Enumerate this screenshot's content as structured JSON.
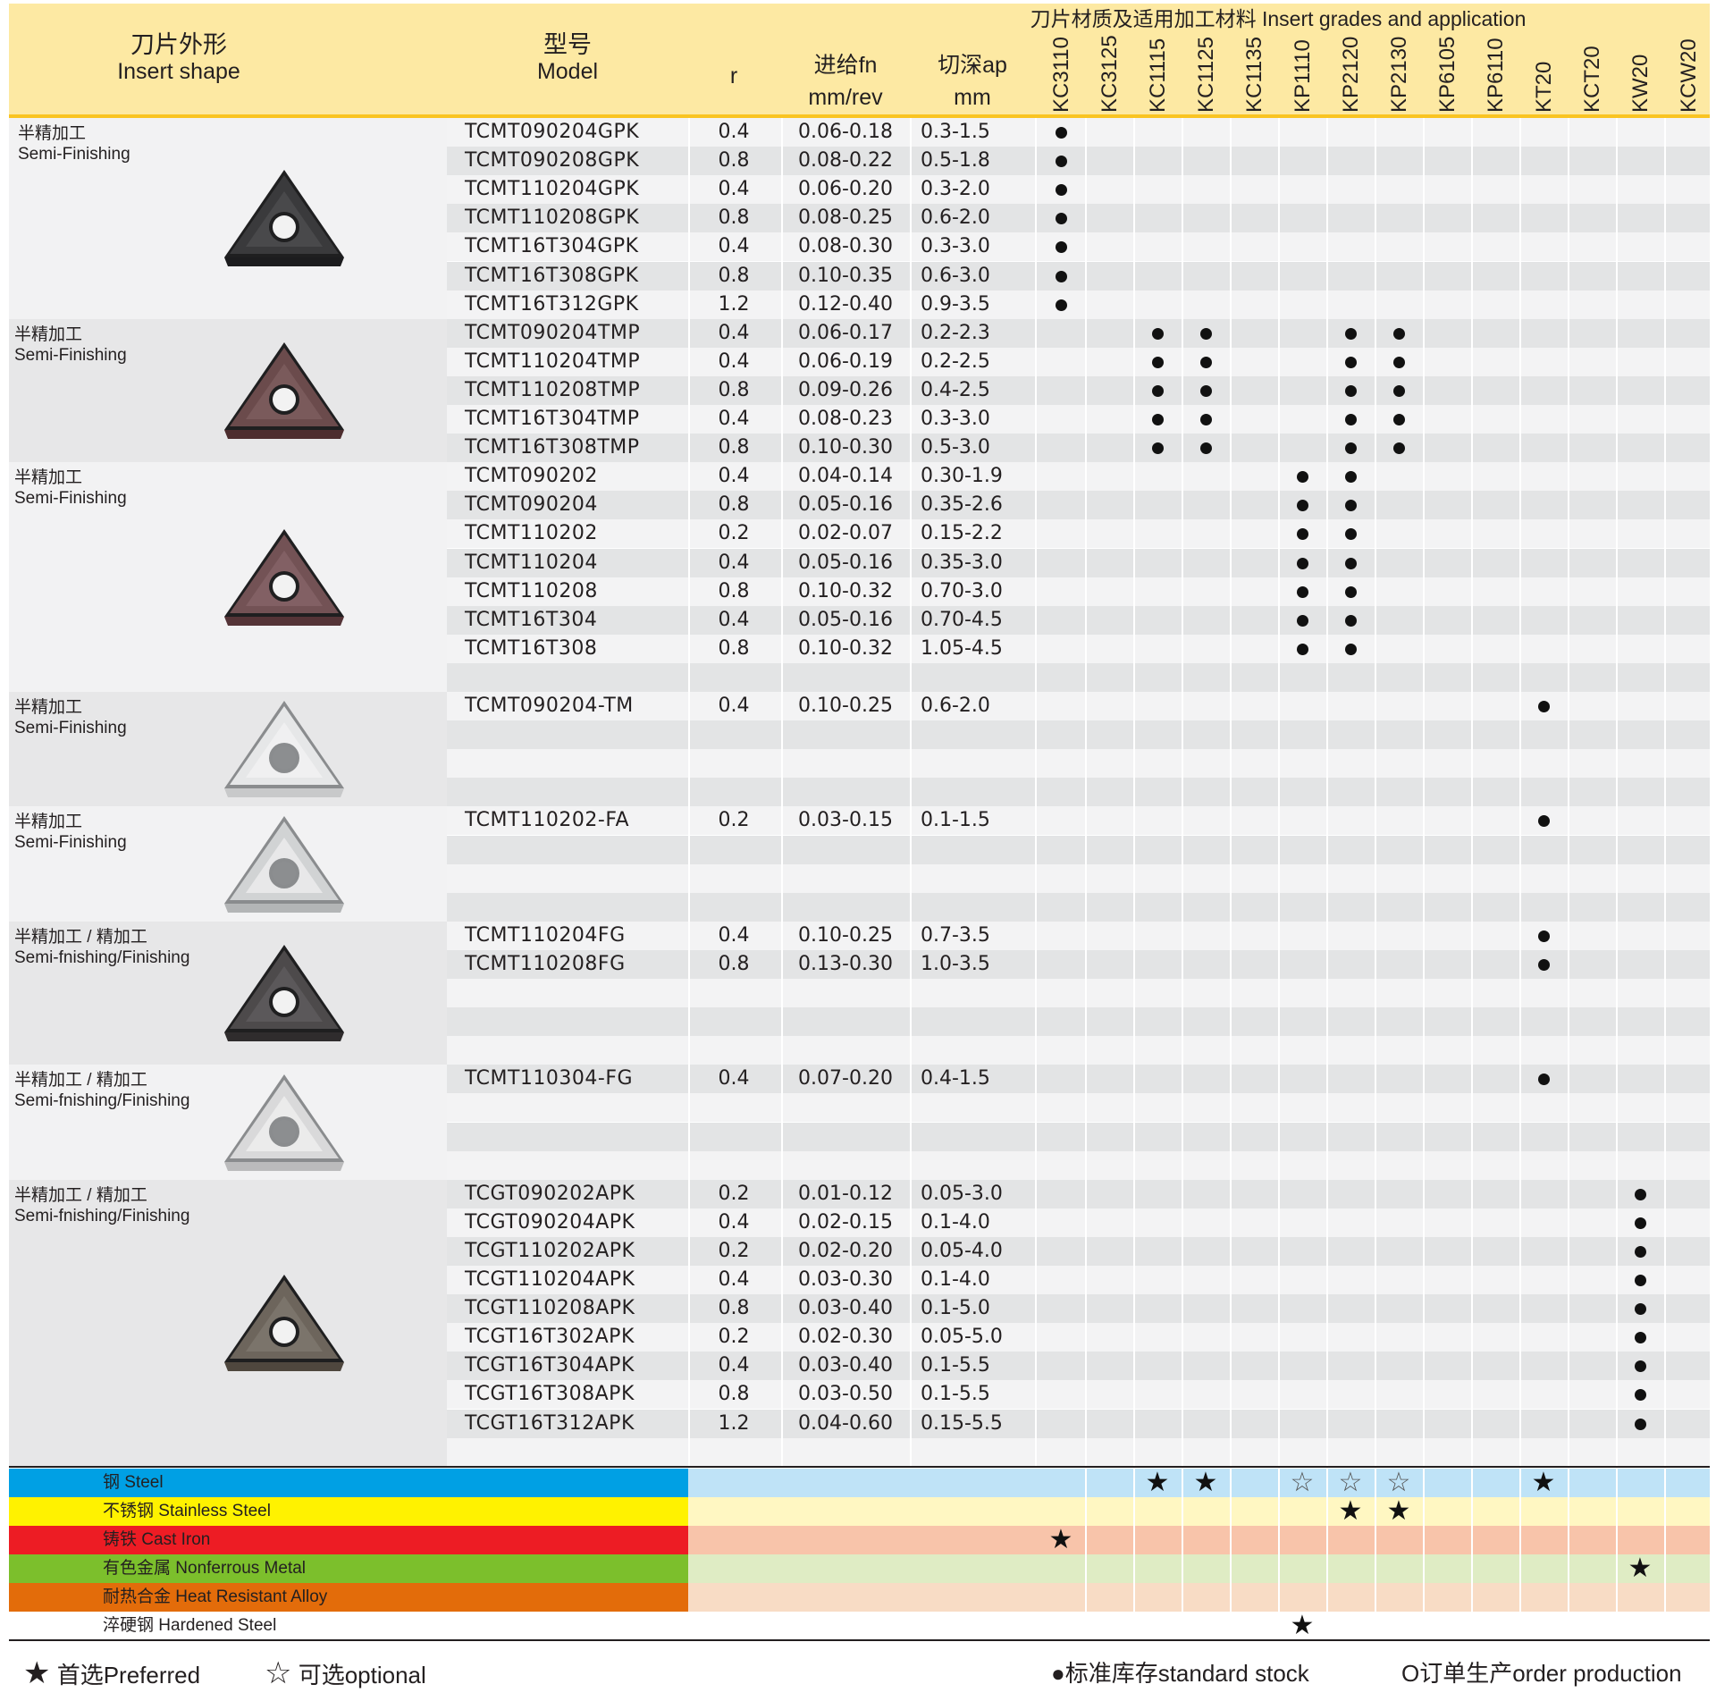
{
  "header": {
    "shape_cn": "刀片外形",
    "shape_en": "Insert shape",
    "model_cn": "型号",
    "model_en": "Model",
    "r": "r",
    "feed_cn": "进给fn",
    "feed_unit": "mm/rev",
    "depth_cn": "切深ap",
    "depth_unit": "mm",
    "grades_title": "刀片材质及适用加工材料 Insert grades and application"
  },
  "grades": [
    "KC3110",
    "KC3125",
    "KC1115",
    "KC1125",
    "KC1135",
    "KP1110",
    "KP2120",
    "KP2130",
    "KP6105",
    "KP6110",
    "KT20",
    "KCT20",
    "KW20",
    "KCW20"
  ],
  "groups": [
    {
      "title_cn": "半精加工",
      "title_en": "Semi-Finishing",
      "icon": "tcmt-gpk-insert-image",
      "color": "#3a3a3c",
      "rows": [
        {
          "model": "TCMT090204GPK",
          "r": "0.4",
          "fn": "0.06-0.18",
          "ap": "0.3-1.5",
          "dots": [
            0
          ]
        },
        {
          "model": "TCMT090208GPK",
          "r": "0.8",
          "fn": "0.08-0.22",
          "ap": "0.5-1.8",
          "dots": [
            0
          ]
        },
        {
          "model": "TCMT110204GPK",
          "r": "0.4",
          "fn": "0.06-0.20",
          "ap": "0.3-2.0",
          "dots": [
            0
          ]
        },
        {
          "model": "TCMT110208GPK",
          "r": "0.8",
          "fn": "0.08-0.25",
          "ap": "0.6-2.0",
          "dots": [
            0
          ]
        },
        {
          "model": "TCMT16T304GPK",
          "r": "0.4",
          "fn": "0.08-0.30",
          "ap": "0.3-3.0",
          "dots": [
            0
          ]
        },
        {
          "model": "TCMT16T308GPK",
          "r": "0.8",
          "fn": "0.10-0.35",
          "ap": "0.6-3.0",
          "dots": [
            0
          ]
        },
        {
          "model": "TCMT16T312GPK",
          "r": "1.2",
          "fn": "0.12-0.40",
          "ap": "0.9-3.5",
          "dots": [
            0
          ]
        }
      ]
    },
    {
      "title_cn": "半精加工",
      "title_en": "Semi-Finishing",
      "icon": "tcmt-tmp-insert-image",
      "color": "#6b4b4c",
      "rows": [
        {
          "model": "TCMT090204TMP",
          "r": "0.4",
          "fn": "0.06-0.17",
          "ap": "0.2-2.3",
          "dots": [
            2,
            3,
            6,
            7
          ]
        },
        {
          "model": "TCMT110204TMP",
          "r": "0.4",
          "fn": "0.06-0.19",
          "ap": "0.2-2.5",
          "dots": [
            2,
            3,
            6,
            7
          ]
        },
        {
          "model": "TCMT110208TMP",
          "r": "0.8",
          "fn": "0.09-0.26",
          "ap": "0.4-2.5",
          "dots": [
            2,
            3,
            6,
            7
          ]
        },
        {
          "model": "TCMT16T304TMP",
          "r": "0.4",
          "fn": "0.08-0.23",
          "ap": "0.3-3.0",
          "dots": [
            2,
            3,
            6,
            7
          ]
        },
        {
          "model": "TCMT16T308TMP",
          "r": "0.8",
          "fn": "0.10-0.30",
          "ap": "0.5-3.0",
          "dots": [
            2,
            3,
            6,
            7
          ]
        }
      ]
    },
    {
      "title_cn": "半精加工",
      "title_en": "Semi-Finishing",
      "icon": "tcmt-plain-insert-image",
      "color": "#735255",
      "rows": [
        {
          "model": "TCMT090202",
          "r": "0.4",
          "fn": "0.04-0.14",
          "ap": "0.30-1.9",
          "dots": [
            5,
            6
          ]
        },
        {
          "model": "TCMT090204",
          "r": "0.8",
          "fn": "0.05-0.16",
          "ap": "0.35-2.6",
          "dots": [
            5,
            6
          ]
        },
        {
          "model": "TCMT110202",
          "r": "0.2",
          "fn": "0.02-0.07",
          "ap": "0.15-2.2",
          "dots": [
            5,
            6
          ]
        },
        {
          "model": "TCMT110204",
          "r": "0.4",
          "fn": "0.05-0.16",
          "ap": "0.35-3.0",
          "dots": [
            5,
            6
          ]
        },
        {
          "model": "TCMT110208",
          "r": "0.8",
          "fn": "0.10-0.32",
          "ap": "0.70-3.0",
          "dots": [
            5,
            6
          ]
        },
        {
          "model": "TCMT16T304",
          "r": "0.4",
          "fn": "0.05-0.16",
          "ap": "0.70-4.5",
          "dots": [
            5,
            6
          ]
        },
        {
          "model": "TCMT16T308",
          "r": "0.8",
          "fn": "0.10-0.32",
          "ap": "1.05-4.5",
          "dots": [
            5,
            6
          ]
        },
        {
          "model": "",
          "r": "",
          "fn": "",
          "ap": "",
          "dots": []
        }
      ]
    },
    {
      "title_cn": "半精加工",
      "title_en": "Semi-Finishing",
      "icon": "tcmt-tm-insert-image",
      "color": "#e6e7e8",
      "rows": [
        {
          "model": "TCMT090204-TM",
          "r": "0.4",
          "fn": "0.10-0.25",
          "ap": "0.6-2.0",
          "dots": [
            10
          ]
        },
        {
          "model": "",
          "r": "",
          "fn": "",
          "ap": "",
          "dots": []
        },
        {
          "model": "",
          "r": "",
          "fn": "",
          "ap": "",
          "dots": []
        },
        {
          "model": "",
          "r": "",
          "fn": "",
          "ap": "",
          "dots": []
        }
      ]
    },
    {
      "title_cn": "半精加工",
      "title_en": "Semi-Finishing",
      "icon": "tcmt-fa-insert-image",
      "color": "#d1d3d4",
      "rows": [
        {
          "model": "TCMT110202-FA",
          "r": "0.2",
          "fn": "0.03-0.15",
          "ap": "0.1-1.5",
          "dots": [
            10
          ]
        },
        {
          "model": "",
          "r": "",
          "fn": "",
          "ap": "",
          "dots": []
        },
        {
          "model": "",
          "r": "",
          "fn": "",
          "ap": "",
          "dots": []
        },
        {
          "model": "",
          "r": "",
          "fn": "",
          "ap": "",
          "dots": []
        }
      ]
    },
    {
      "title_cn": "半精加工 / 精加工",
      "title_en": "Semi-fnishing/Finishing",
      "icon": "tcmt-fg-insert-image",
      "color": "#4d4a4b",
      "rows": [
        {
          "model": "TCMT110204FG",
          "r": "0.4",
          "fn": "0.10-0.25",
          "ap": "0.7-3.5",
          "dots": [
            10
          ]
        },
        {
          "model": "TCMT110208FG",
          "r": "0.8",
          "fn": "0.13-0.30",
          "ap": "1.0-3.5",
          "dots": [
            10
          ]
        },
        {
          "model": "",
          "r": "",
          "fn": "",
          "ap": "",
          "dots": []
        },
        {
          "model": "",
          "r": "",
          "fn": "",
          "ap": "",
          "dots": []
        },
        {
          "model": "",
          "r": "",
          "fn": "",
          "ap": "",
          "dots": []
        }
      ]
    },
    {
      "title_cn": "半精加工 / 精加工",
      "title_en": "Semi-fnishing/Finishing",
      "icon": "tcmt-110304-fg-insert-image",
      "color": "#d9d9da",
      "rows": [
        {
          "model": "TCMT110304-FG",
          "r": "0.4",
          "fn": "0.07-0.20",
          "ap": "0.4-1.5",
          "dots": [
            10
          ]
        },
        {
          "model": "",
          "r": "",
          "fn": "",
          "ap": "",
          "dots": []
        },
        {
          "model": "",
          "r": "",
          "fn": "",
          "ap": "",
          "dots": []
        },
        {
          "model": "",
          "r": "",
          "fn": "",
          "ap": "",
          "dots": []
        }
      ]
    },
    {
      "title_cn": "半精加工 / 精加工",
      "title_en": "Semi-fnishing/Finishing",
      "icon": "tcgt-apk-insert-image",
      "color": "#6d655c",
      "rows": [
        {
          "model": "TCGT090202APK",
          "r": "0.2",
          "fn": "0.01-0.12",
          "ap": "0.05-3.0",
          "dots": [
            12
          ]
        },
        {
          "model": "TCGT090204APK",
          "r": "0.4",
          "fn": "0.02-0.15",
          "ap": "0.1-4.0",
          "dots": [
            12
          ]
        },
        {
          "model": "TCGT110202APK",
          "r": "0.2",
          "fn": "0.02-0.20",
          "ap": "0.05-4.0",
          "dots": [
            12
          ]
        },
        {
          "model": "TCGT110204APK",
          "r": "0.4",
          "fn": "0.03-0.30",
          "ap": "0.1-4.0",
          "dots": [
            12
          ]
        },
        {
          "model": "TCGT110208APK",
          "r": "0.8",
          "fn": "0.03-0.40",
          "ap": "0.1-5.0",
          "dots": [
            12
          ]
        },
        {
          "model": "TCGT16T302APK",
          "r": "0.2",
          "fn": "0.02-0.30",
          "ap": "0.05-5.0",
          "dots": [
            12
          ]
        },
        {
          "model": "TCGT16T304APK",
          "r": "0.4",
          "fn": "0.03-0.40",
          "ap": "0.1-5.5",
          "dots": [
            12
          ]
        },
        {
          "model": "TCGT16T308APK",
          "r": "0.8",
          "fn": "0.03-0.50",
          "ap": "0.1-5.5",
          "dots": [
            12
          ]
        },
        {
          "model": "TCGT16T312APK",
          "r": "1.2",
          "fn": "0.04-0.60",
          "ap": "0.15-5.5",
          "dots": [
            12
          ]
        },
        {
          "model": "",
          "r": "",
          "fn": "",
          "ap": "",
          "dots": []
        }
      ]
    }
  ],
  "materials": [
    {
      "label": "钢 Steel",
      "color": "#00a0e4",
      "light": "#bfe3f7",
      "marks": [
        {
          "g": 2,
          "s": "★"
        },
        {
          "g": 3,
          "s": "★"
        },
        {
          "g": 5,
          "s": "☆"
        },
        {
          "g": 6,
          "s": "☆"
        },
        {
          "g": 7,
          "s": "☆"
        },
        {
          "g": 10,
          "s": "★"
        }
      ]
    },
    {
      "label": "不锈钢 Stainless Steel",
      "color": "#fff200",
      "light": "#fff7c2",
      "marks": [
        {
          "g": 6,
          "s": "★"
        },
        {
          "g": 7,
          "s": "★"
        }
      ]
    },
    {
      "label": "铸铁 Cast Iron",
      "color": "#ed1c24",
      "light": "#f8c4aa",
      "marks": [
        {
          "g": 0,
          "s": "★"
        }
      ]
    },
    {
      "label": "有色金属 Nonferrous Metal",
      "color": "#7cbf2c",
      "light": "#dfecc4",
      "marks": [
        {
          "g": 12,
          "s": "★"
        }
      ]
    },
    {
      "label": "耐热合金 Heat Resistant Alloy",
      "color": "#e36c0a",
      "light": "#f8dcc5",
      "marks": []
    },
    {
      "label": "淬硬钢 Hardened Steel",
      "color": "#ffffff",
      "light": "#ffffff",
      "marks": [
        {
          "g": 5,
          "s": "★"
        }
      ]
    }
  ],
  "legend": {
    "preferred_symbol": "★",
    "preferred": "首选Preferred",
    "optional_symbol": "☆",
    "optional": "可选optional",
    "stock": "●标准库存standard stock",
    "order": "O订单生产order production"
  }
}
